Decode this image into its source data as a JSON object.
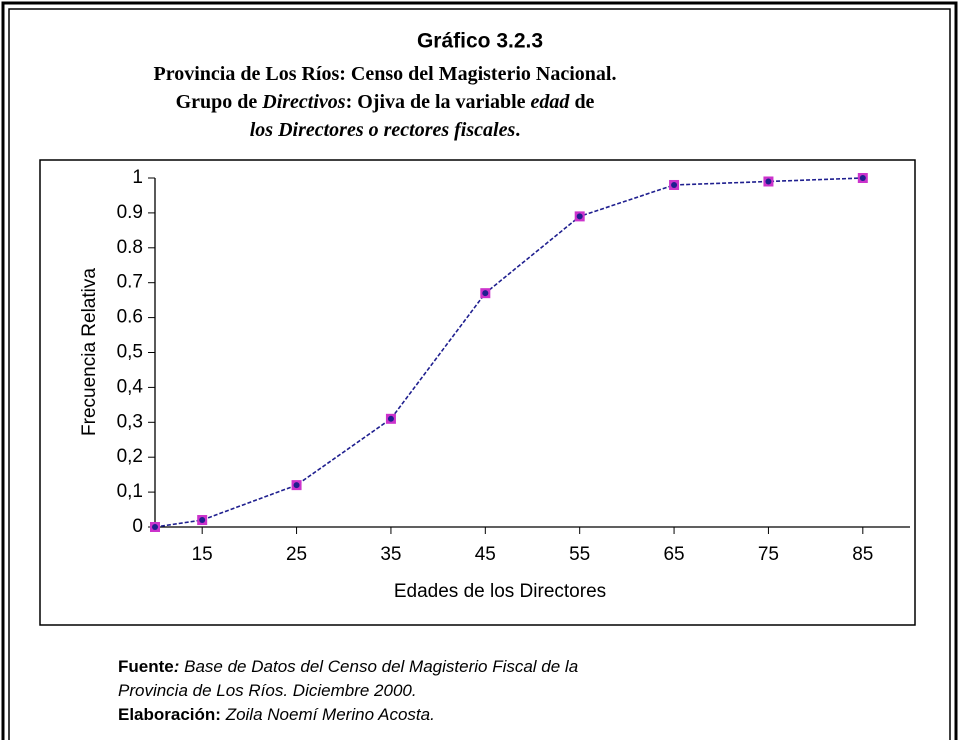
{
  "figure_title": "Gráfico 3.2.3",
  "subtitle_lines": [
    [
      {
        "text": "Provincia de Los Ríos: Censo del Magisterio Nacional.",
        "style": "bold"
      }
    ],
    [
      {
        "text": "Grupo de ",
        "style": "bold"
      },
      {
        "text": "Directivos",
        "style": "bold italic"
      },
      {
        "text": ": Ojiva de la variable ",
        "style": "bold"
      },
      {
        "text": "edad",
        "style": "bold italic"
      },
      {
        "text": " de",
        "style": "bold"
      }
    ],
    [
      {
        "text": "los Directores o rectores fiscales",
        "style": "bold italic"
      },
      {
        "text": ".",
        "style": "bold"
      }
    ]
  ],
  "footer_lines": [
    [
      {
        "text": "Fuente",
        "style": "bold"
      },
      {
        "text": ":",
        "style": "bold italic"
      },
      {
        "text": " Base de Datos del Censo del Magisterio Fiscal de la",
        "style": "italic"
      }
    ],
    [
      {
        "text": "Provincia de Los Ríos. Diciembre 2000.",
        "style": "italic"
      }
    ],
    [
      {
        "text": "Elaboración:",
        "style": "bold"
      },
      {
        "text": " Zoila Noemí Merino Acosta.",
        "style": "italic"
      }
    ]
  ],
  "chart_data": {
    "type": "line",
    "xlabel": "Edades de los Directores",
    "ylabel": "Frecuencia Relativa",
    "x": [
      10,
      15,
      25,
      35,
      45,
      55,
      65,
      75,
      85
    ],
    "values": [
      0,
      0.02,
      0.12,
      0.31,
      0.67,
      0.89,
      0.98,
      0.99,
      1.0
    ],
    "line_color": "#1f1f8f",
    "marker_color": "#cc33cc",
    "xlim": [
      10,
      90
    ],
    "xticks": [
      15,
      25,
      35,
      45,
      55,
      65,
      75,
      85
    ],
    "ylim": [
      0,
      1
    ],
    "yticks": [
      0,
      {
        "value": 0.1,
        "label": "0,1"
      },
      {
        "value": 0.2,
        "label": "0,2"
      },
      {
        "value": 0.3,
        "label": "0,3"
      },
      {
        "value": 0.4,
        "label": "0,4"
      },
      {
        "value": 0.5,
        "label": "0,5"
      },
      0.6,
      0.7,
      0.8,
      0.9,
      1
    ],
    "grid": false
  }
}
